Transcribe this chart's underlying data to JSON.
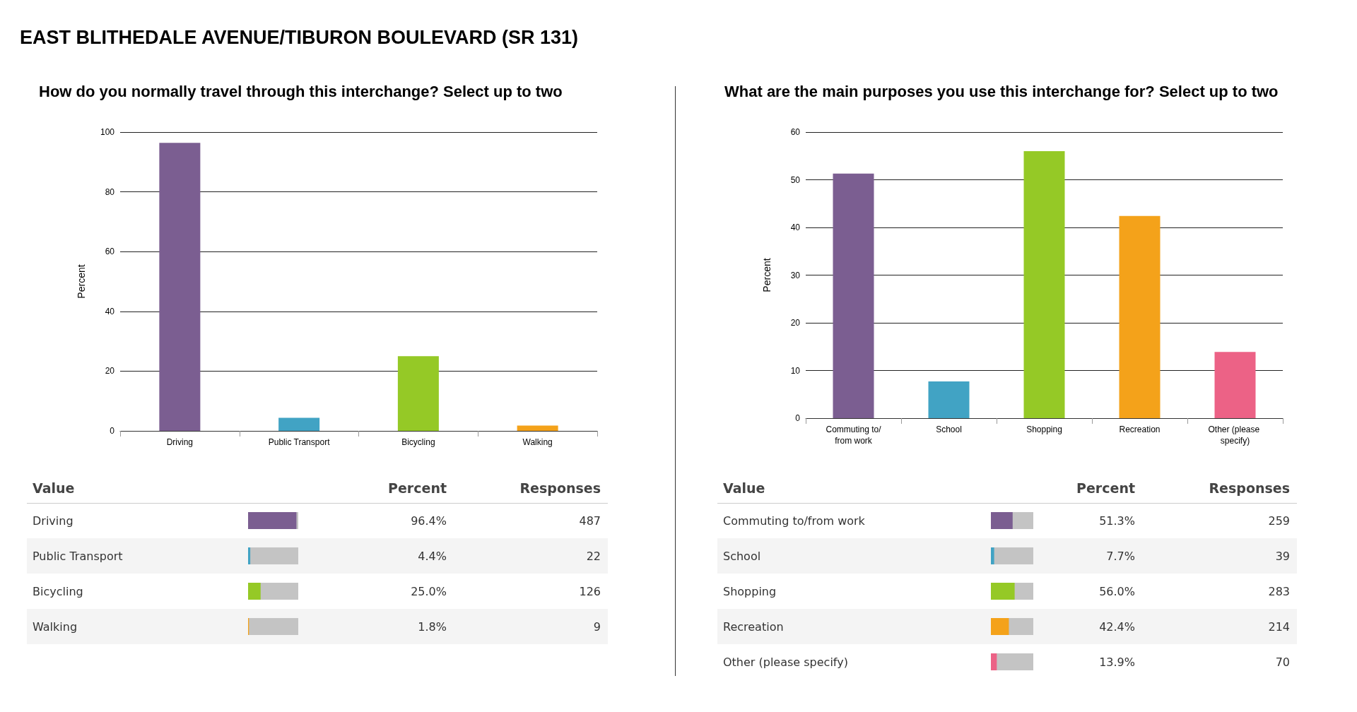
{
  "chart_data": [
    {
      "type": "other",
      "title": "EAST BLITHEDALE AVENUE/TIBURON BOULEVARD (SR 131)"
    },
    {
      "type": "bar",
      "title": "How do you normally travel through this interchange? Select up to two",
      "ylabel": "Percent",
      "categories": [
        "Driving",
        "Public Transport",
        "Bicycling",
        "Walking"
      ],
      "values": [
        96.4,
        4.4,
        25.0,
        1.8
      ],
      "colors": [
        "#7b5e91",
        "#41a3c4",
        "#95c926",
        "#f4a21a"
      ],
      "ylim": [
        0,
        100
      ],
      "yticks": [
        0,
        20,
        40,
        60,
        80,
        100
      ],
      "grid": "y"
    },
    {
      "type": "bar",
      "orientation": "horizontal",
      "categories": [
        "Driving",
        "Public Transport",
        "Bicycling",
        "Walking"
      ],
      "values": [
        96.4,
        4.4,
        25.0,
        1.8
      ],
      "colors": [
        "#7b5e91",
        "#41a3c4",
        "#95c926",
        "#f4a21a"
      ],
      "xlim": [
        0,
        100
      ],
      "tick_labels": false,
      "value_labels": [
        "96.4%",
        "4.4%",
        "25.0%",
        "1.8%"
      ],
      "annotations": [
        "Value",
        "Percent",
        "Responses",
        "487",
        "22",
        "126",
        "9"
      ]
    },
    {
      "type": "bar",
      "title": "What are the main purposes you use this interchange for? Select up to two",
      "ylabel": "Percent",
      "categories": [
        "Commuting to/from work",
        "School",
        "Shopping",
        "Recreation",
        "Other (please specify)"
      ],
      "values": [
        51.3,
        7.7,
        56.0,
        42.4,
        13.9
      ],
      "colors": [
        "#7b5e91",
        "#41a3c4",
        "#95c926",
        "#f4a21a",
        "#ec6286"
      ],
      "ylim": [
        0,
        60
      ],
      "yticks": [
        0,
        10,
        20,
        30,
        40,
        50,
        60
      ],
      "grid": "y"
    },
    {
      "type": "bar",
      "orientation": "horizontal",
      "categories": [
        "Commuting to/from work",
        "School",
        "Shopping",
        "Recreation",
        "Other (please specify)"
      ],
      "values": [
        51.3,
        7.7,
        56.0,
        42.4,
        13.9
      ],
      "colors": [
        "#7b5e91",
        "#41a3c4",
        "#95c926",
        "#f4a21a",
        "#ec6286"
      ],
      "xlim": [
        0,
        100
      ],
      "tick_labels": false,
      "value_labels": [
        "51.3%",
        "7.7%",
        "56.0%",
        "42.4%",
        "13.9%"
      ],
      "annotations": [
        "Value",
        "Percent",
        "Responses",
        "259",
        "39",
        "283",
        "214",
        "70"
      ]
    }
  ]
}
